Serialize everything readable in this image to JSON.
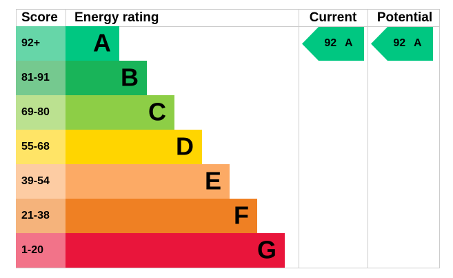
{
  "header": {
    "score": "Score",
    "energy_rating": "Energy rating",
    "current": "Current",
    "potential": "Potential"
  },
  "rows": [
    {
      "score": "92+",
      "rating": "A"
    },
    {
      "score": "81-91",
      "rating": "B"
    },
    {
      "score": "69-80",
      "rating": "C"
    },
    {
      "score": "55-68",
      "rating": "D"
    },
    {
      "score": "39-54",
      "rating": "E"
    },
    {
      "score": "21-38",
      "rating": "F"
    },
    {
      "score": "1-20",
      "rating": "G"
    }
  ],
  "current": {
    "label": "92 A"
  },
  "potential": {
    "label": "92 A"
  }
}
